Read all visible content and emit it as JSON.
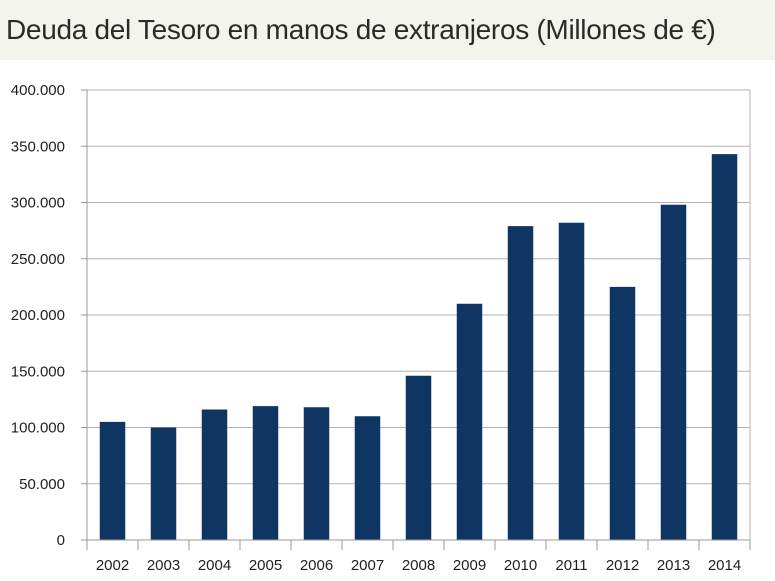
{
  "chart_data": {
    "type": "bar",
    "title": "Deuda del Tesoro en manos de extranjeros (Millones de €)",
    "xlabel": "",
    "ylabel": "",
    "categories": [
      "2002",
      "2003",
      "2004",
      "2005",
      "2006",
      "2007",
      "2008",
      "2009",
      "2010",
      "2011",
      "2012",
      "2013",
      "2014"
    ],
    "values": [
      105000,
      100000,
      116000,
      119000,
      118000,
      110000,
      146000,
      210000,
      279000,
      282000,
      225000,
      298000,
      343000
    ],
    "ylim": [
      0,
      400000
    ],
    "yticks": [
      0,
      50000,
      100000,
      150000,
      200000,
      250000,
      300000,
      350000,
      400000
    ],
    "ytick_labels": [
      "0",
      "50.000",
      "100.000",
      "150.000",
      "200.000",
      "250.000",
      "300.000",
      "350.000",
      "400.000"
    ],
    "grid": true,
    "bar_color": "#0f3563",
    "gridline_color": "#b3b3b3"
  }
}
